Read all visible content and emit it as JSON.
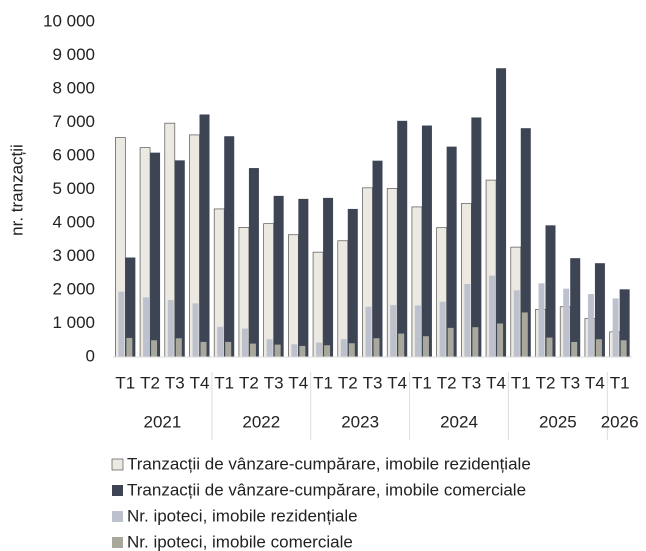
{
  "chart_data": {
    "type": "bar",
    "y_label": "nr. tranzacții",
    "categories": [
      "T1",
      "T2",
      "T3",
      "T4",
      "T1",
      "T2",
      "T3",
      "T4",
      "T1",
      "T2",
      "T3",
      "T4",
      "T1",
      "T2",
      "T3",
      "T4",
      "T1",
      "T2",
      "T3",
      "T4",
      "T1"
    ],
    "category_groups": [
      "2021",
      "2021",
      "2021",
      "2021",
      "2022",
      "2022",
      "2022",
      "2022",
      "2023",
      "2023",
      "2023",
      "2023",
      "2024",
      "2024",
      "2024",
      "2024",
      "2025",
      "2025",
      "2025",
      "2025",
      "2026"
    ],
    "series": [
      {
        "name": "Tranzacții de vânzare-cumpărare, imobile rezidențiale",
        "color": "#ebe9e1",
        "values": [
          6550,
          6250,
          6980,
          6630,
          4420,
          3870,
          3980,
          3650,
          3130,
          3470,
          5050,
          5030,
          4480,
          3860,
          4580,
          5280,
          3280,
          1420,
          1500,
          1150,
          750
        ]
      },
      {
        "name": "Tranzacții de vânzare-cumpărare, imobile comerciale",
        "color": "#3d4454",
        "values": [
          2970,
          6100,
          5870,
          7240,
          6590,
          5640,
          4810,
          4720,
          4750,
          4420,
          5860,
          7050,
          6910,
          6280,
          7150,
          8620,
          6830,
          3930,
          2950,
          2800,
          2020
        ]
      },
      {
        "name": "Nr. ipoteci, imobile rezidențiale",
        "color": "#bcc1cd",
        "values": [
          1950,
          1780,
          1700,
          1600,
          900,
          850,
          530,
          380,
          430,
          530,
          1500,
          1550,
          1540,
          1650,
          2180,
          2430,
          1990,
          2200,
          2040,
          1880,
          1750
        ]
      },
      {
        "name": "Nr. ipoteci, imobile comerciale",
        "color": "#a8a99c",
        "values": [
          570,
          500,
          560,
          450,
          450,
          400,
          370,
          330,
          350,
          410,
          560,
          700,
          620,
          870,
          890,
          1000,
          1330,
          580,
          450,
          530,
          500
        ]
      }
    ],
    "ylim": [
      0,
      10000
    ],
    "yticks": [
      0,
      {
        "value": 1000,
        "label": "1 000"
      },
      {
        "value": 2000,
        "label": "2 000"
      },
      {
        "value": 3000,
        "label": "3 000"
      },
      {
        "value": 4000,
        "label": "4 000"
      },
      {
        "value": 5000,
        "label": "5 000"
      },
      {
        "value": 6000,
        "label": "6 000"
      },
      {
        "value": 7000,
        "label": "7 000"
      },
      {
        "value": 8000,
        "label": "8 000"
      },
      {
        "value": 9000,
        "label": "9 000"
      },
      {
        "value": 10000,
        "label": "10 000"
      }
    ],
    "grid": false
  }
}
